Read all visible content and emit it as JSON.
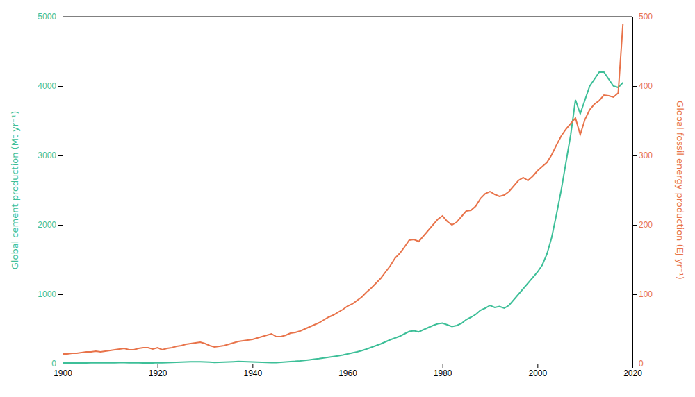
{
  "chart_data": {
    "type": "line",
    "ylabel": "Global cement production (Mt yr⁻¹)",
    "y2label": "Global fossil energy production (EJ yr⁻¹)",
    "x": [
      1900,
      1901,
      1902,
      1903,
      1904,
      1905,
      1906,
      1907,
      1908,
      1909,
      1910,
      1911,
      1912,
      1913,
      1914,
      1915,
      1916,
      1917,
      1918,
      1919,
      1920,
      1921,
      1922,
      1923,
      1924,
      1925,
      1926,
      1927,
      1928,
      1929,
      1930,
      1931,
      1932,
      1933,
      1934,
      1935,
      1936,
      1937,
      1938,
      1939,
      1940,
      1941,
      1942,
      1943,
      1944,
      1945,
      1946,
      1947,
      1948,
      1949,
      1950,
      1951,
      1952,
      1953,
      1954,
      1955,
      1956,
      1957,
      1958,
      1959,
      1960,
      1961,
      1962,
      1963,
      1964,
      1965,
      1966,
      1967,
      1968,
      1969,
      1970,
      1971,
      1972,
      1973,
      1974,
      1975,
      1976,
      1977,
      1978,
      1979,
      1980,
      1981,
      1982,
      1983,
      1984,
      1985,
      1986,
      1987,
      1988,
      1989,
      1990,
      1991,
      1992,
      1993,
      1994,
      1995,
      1996,
      1997,
      1998,
      1999,
      2000,
      2001,
      2002,
      2003,
      2004,
      2005,
      2006,
      2007,
      2008,
      2009,
      2010,
      2011,
      2012,
      2013,
      2014,
      2015,
      2016,
      2017,
      2018
    ],
    "series": [
      {
        "color": "#3dbf98",
        "axis": "y",
        "values": [
          10,
          10,
          10,
          10,
          11,
          11,
          12,
          12,
          12,
          12,
          13,
          13,
          14,
          14,
          13,
          12,
          12,
          11,
          10,
          10,
          14,
          12,
          15,
          18,
          20,
          22,
          25,
          27,
          28,
          28,
          26,
          22,
          18,
          20,
          22,
          25,
          28,
          32,
          30,
          28,
          25,
          23,
          20,
          18,
          16,
          15,
          20,
          26,
          30,
          34,
          40,
          48,
          56,
          64,
          72,
          82,
          92,
          102,
          112,
          125,
          140,
          155,
          170,
          188,
          210,
          235,
          260,
          285,
          315,
          345,
          370,
          395,
          430,
          465,
          475,
          458,
          490,
          520,
          550,
          575,
          585,
          560,
          535,
          550,
          580,
          635,
          670,
          710,
          770,
          800,
          840,
          810,
          825,
          800,
          840,
          920,
          1000,
          1080,
          1160,
          1240,
          1320,
          1420,
          1580,
          1820,
          2150,
          2500,
          2900,
          3300,
          3800,
          3600,
          3800,
          4000,
          4100,
          4200,
          4200,
          4100,
          4000,
          3980,
          4050
        ]
      },
      {
        "color": "#e8734a",
        "axis": "y2",
        "values": [
          14,
          14,
          15,
          15,
          16,
          17,
          17,
          18,
          17,
          18,
          19,
          20,
          21,
          22,
          20,
          20,
          22,
          23,
          23,
          21,
          23,
          20,
          22,
          23,
          25,
          26,
          28,
          29,
          30,
          31,
          29,
          26,
          24,
          25,
          26,
          28,
          30,
          32,
          33,
          34,
          35,
          37,
          39,
          41,
          43,
          39,
          39,
          41,
          44,
          45,
          47,
          50,
          53,
          56,
          59,
          63,
          67,
          70,
          74,
          78,
          83,
          86,
          91,
          96,
          103,
          109,
          116,
          123,
          132,
          141,
          152,
          159,
          168,
          178,
          179,
          176,
          184,
          192,
          200,
          208,
          213,
          205,
          200,
          204,
          212,
          220,
          221,
          227,
          238,
          245,
          248,
          244,
          241,
          243,
          248,
          256,
          264,
          268,
          264,
          270,
          278,
          284,
          290,
          301,
          315,
          328,
          338,
          346,
          354,
          330,
          352,
          366,
          374,
          379,
          387,
          386,
          384,
          390,
          490
        ]
      }
    ],
    "xlim": [
      1900,
      2020
    ],
    "xticks": [
      1900,
      1920,
      1940,
      1960,
      1980,
      2000,
      2020
    ],
    "ylim": [
      0,
      5000
    ],
    "yticks": [
      0,
      1000,
      2000,
      3000,
      4000,
      5000
    ],
    "y2lim": [
      0,
      500
    ],
    "y2ticks": [
      0,
      100,
      200,
      300,
      400,
      500
    ],
    "grid": false
  }
}
